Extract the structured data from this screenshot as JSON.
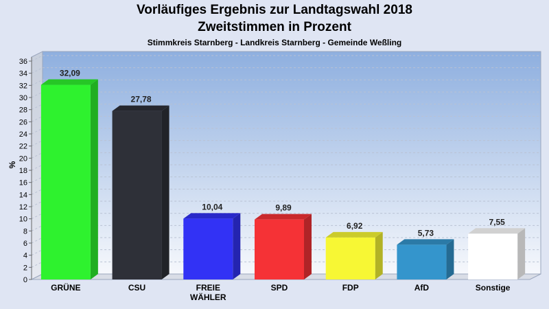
{
  "chart_data": {
    "type": "bar",
    "title": "Vorläufiges Ergebnis zur Landtagswahl 2018",
    "subtitle": "Zweitstimmen in Prozent",
    "caption": "Stimmkreis Starnberg - Landkreis Starnberg - Gemeinde Weßling",
    "ylabel": "%",
    "ylim": [
      0,
      36
    ],
    "ytick_step": 2,
    "grid": true,
    "categories": [
      {
        "lines": [
          "GRÜNE"
        ]
      },
      {
        "lines": [
          "CSU"
        ]
      },
      {
        "lines": [
          "FREIE",
          "WÄHLER"
        ]
      },
      {
        "lines": [
          "SPD"
        ]
      },
      {
        "lines": [
          "FDP"
        ]
      },
      {
        "lines": [
          "AfD"
        ]
      },
      {
        "lines": [
          "Sonstige"
        ]
      }
    ],
    "values": [
      32.09,
      27.78,
      10.04,
      9.89,
      6.92,
      5.73,
      7.55
    ],
    "value_labels": [
      "32,09",
      "27,78",
      "10,04",
      "9,89",
      "6,92",
      "5,73",
      "7,55"
    ],
    "colors": [
      "#2ef22e",
      "#2e3038",
      "#3232f5",
      "#f53236",
      "#f7f734",
      "#3495cc",
      "#ffffff"
    ]
  }
}
